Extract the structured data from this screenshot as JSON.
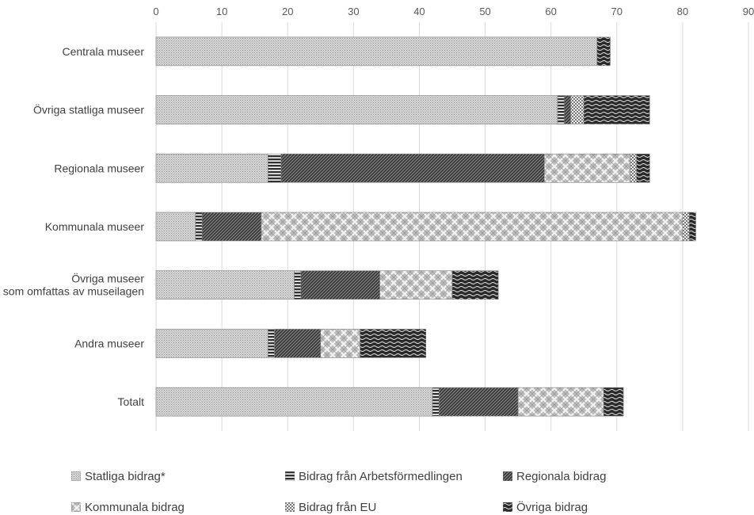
{
  "chart_data": {
    "type": "bar",
    "orientation": "horizontal",
    "stacked": true,
    "title": "",
    "xlabel": "",
    "ylabel": "",
    "xlim": [
      0,
      90
    ],
    "x_ticks": [
      0,
      10,
      20,
      30,
      40,
      50,
      60,
      70,
      80,
      90
    ],
    "x_axis_position": "top",
    "grid": true,
    "legend_position": "bottom",
    "categories": [
      "Centrala museer",
      "Övriga statliga museer",
      "Regionala museer",
      "Kommunala museer",
      "Övriga museer som omfattas av museilagen",
      "Andra museer",
      "Totalt"
    ],
    "series": [
      {
        "name": "Statliga bidrag*",
        "color": "#cfcfcf",
        "pattern": "dots",
        "values": [
          67,
          61,
          17,
          6,
          21,
          17,
          42
        ]
      },
      {
        "name": "Bidrag från Arbetsförmedlingen",
        "color": "#3a3a3a",
        "pattern": "horizontal-stripes",
        "values": [
          0,
          1,
          2,
          1,
          1,
          1,
          1
        ]
      },
      {
        "name": "Regionala bidrag",
        "color": "#3a3a3a",
        "pattern": "diagonal-stripes",
        "values": [
          0,
          1,
          40,
          9,
          12,
          7,
          12
        ]
      },
      {
        "name": "Kommunala bidrag",
        "color": "#c0c0c0",
        "pattern": "lattice",
        "values": [
          0,
          0,
          13,
          64,
          11,
          6,
          13
        ]
      },
      {
        "name": "Bidrag från EU",
        "color": "#dcdcdc",
        "pattern": "checker",
        "values": [
          0,
          2,
          1,
          1,
          0,
          0,
          0
        ]
      },
      {
        "name": "Övriga bidrag",
        "color": "#2e2e2e",
        "pattern": "waves",
        "values": [
          2,
          10,
          2,
          1,
          7,
          10,
          3
        ]
      }
    ]
  }
}
